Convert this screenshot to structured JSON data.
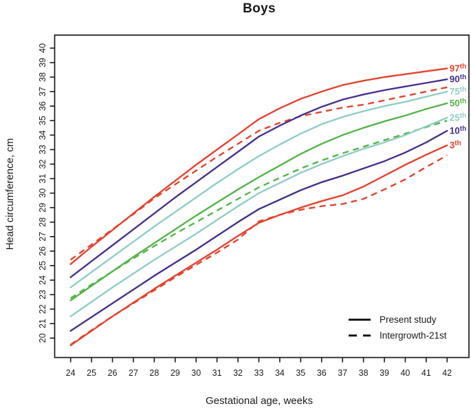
{
  "title": "Boys",
  "axes": {
    "x": {
      "label": "Gestational age, weeks",
      "ticks": [
        24,
        25,
        26,
        27,
        28,
        29,
        30,
        31,
        32,
        33,
        34,
        35,
        36,
        37,
        38,
        39,
        40,
        41,
        42
      ]
    },
    "y": {
      "label": "Head circumference, cm",
      "ticks": [
        20,
        21,
        22,
        23,
        24,
        25,
        26,
        27,
        28,
        29,
        30,
        31,
        32,
        33,
        34,
        35,
        36,
        37,
        38,
        39,
        40
      ]
    }
  },
  "legend": {
    "items": [
      {
        "label": "Present study",
        "style": "solid"
      },
      {
        "label": "Intergrowth-21st",
        "style": "dashed"
      }
    ]
  },
  "colors": {
    "red": "#E5422D",
    "purple": "#472F8F",
    "teal": "#8FCDC5",
    "green": "#53B549",
    "axis": "#1A1A1A"
  },
  "chart_data": {
    "type": "line",
    "title": "Boys",
    "xlabel": "Gestational age, weeks",
    "ylabel": "Head circumference, cm",
    "xlim": [
      23.2,
      43.0
    ],
    "ylim": [
      18.7,
      41.0
    ],
    "grid": false,
    "legend_position": "bottom-right-inside",
    "x": [
      24,
      25,
      26,
      27,
      28,
      29,
      30,
      31,
      32,
      33,
      34,
      35,
      36,
      37,
      38,
      39,
      40,
      41,
      42
    ],
    "series": [
      {
        "name": "97th",
        "study": "Present study",
        "color": "#E5422D",
        "dashed": false,
        "end_label": {
          "num": "97",
          "sup": "th"
        },
        "values": [
          25.1,
          26.3,
          27.45,
          28.6,
          29.75,
          30.85,
          31.95,
          33.0,
          34.05,
          35.1,
          35.85,
          36.5,
          37.0,
          37.45,
          37.75,
          38.0,
          38.2,
          38.4,
          38.6
        ]
      },
      {
        "name": "97th",
        "study": "Intergrowth-21st",
        "color": "#E5422D",
        "dashed": true,
        "end_label": null,
        "values": [
          25.4,
          26.45,
          27.5,
          28.55,
          29.65,
          30.6,
          31.55,
          32.5,
          33.4,
          34.3,
          34.85,
          35.3,
          35.6,
          35.9,
          36.1,
          36.4,
          36.7,
          37.0,
          37.3
        ]
      },
      {
        "name": "90th",
        "study": "Present study",
        "color": "#472F8F",
        "dashed": false,
        "end_label": {
          "num": "90",
          "sup": "th"
        },
        "values": [
          24.2,
          25.3,
          26.4,
          27.5,
          28.6,
          29.7,
          30.75,
          31.8,
          32.85,
          33.9,
          34.65,
          35.35,
          35.95,
          36.45,
          36.8,
          37.1,
          37.35,
          37.6,
          37.85
        ]
      },
      {
        "name": "75th",
        "study": "Present study",
        "color": "#8FCDC5",
        "dashed": false,
        "end_label": {
          "num": "75",
          "sup": "th"
        },
        "values": [
          23.5,
          24.55,
          25.6,
          26.65,
          27.7,
          28.7,
          29.7,
          30.7,
          31.65,
          32.55,
          33.35,
          34.1,
          34.75,
          35.25,
          35.65,
          36.0,
          36.3,
          36.65,
          37.0
        ]
      },
      {
        "name": "50th",
        "study": "Present study",
        "color": "#53B549",
        "dashed": false,
        "end_label": {
          "num": "50",
          "sup": "th"
        },
        "values": [
          22.6,
          23.6,
          24.6,
          25.6,
          26.55,
          27.5,
          28.45,
          29.35,
          30.25,
          31.1,
          31.9,
          32.7,
          33.4,
          34.0,
          34.5,
          34.95,
          35.35,
          35.8,
          36.2
        ]
      },
      {
        "name": "50th",
        "study": "Intergrowth-21st",
        "color": "#53B549",
        "dashed": true,
        "end_label": null,
        "values": [
          22.75,
          23.7,
          24.6,
          25.5,
          26.35,
          27.2,
          28.0,
          28.8,
          29.6,
          30.4,
          31.05,
          31.7,
          32.25,
          32.75,
          33.2,
          33.65,
          34.1,
          34.55,
          35.0
        ]
      },
      {
        "name": "25th",
        "study": "Present study",
        "color": "#8FCDC5",
        "dashed": false,
        "end_label": {
          "num": "25",
          "sup": "th"
        },
        "values": [
          21.5,
          22.5,
          23.5,
          24.45,
          25.4,
          26.3,
          27.2,
          28.15,
          29.1,
          30.0,
          30.7,
          31.4,
          32.0,
          32.55,
          33.05,
          33.5,
          34.0,
          34.6,
          35.2
        ]
      },
      {
        "name": "10th",
        "study": "Present study",
        "color": "#472F8F",
        "dashed": false,
        "end_label": {
          "num": "10",
          "sup": "th"
        },
        "values": [
          20.5,
          21.45,
          22.4,
          23.35,
          24.3,
          25.2,
          26.1,
          27.05,
          28.0,
          28.9,
          29.55,
          30.2,
          30.75,
          31.2,
          31.7,
          32.2,
          32.8,
          33.5,
          34.3
        ]
      },
      {
        "name": "3th",
        "study": "Present study",
        "color": "#E5422D",
        "dashed": false,
        "end_label": {
          "num": "3",
          "sup": "th"
        },
        "values": [
          19.5,
          20.5,
          21.5,
          22.45,
          23.4,
          24.3,
          25.2,
          26.1,
          27.05,
          27.95,
          28.5,
          29.0,
          29.45,
          29.85,
          30.45,
          31.2,
          31.95,
          32.65,
          33.3
        ]
      },
      {
        "name": "3th",
        "study": "Intergrowth-21st",
        "color": "#E5422D",
        "dashed": true,
        "end_label": null,
        "values": [
          19.55,
          20.55,
          21.5,
          22.4,
          23.3,
          24.2,
          25.05,
          25.9,
          26.8,
          28.05,
          28.5,
          28.85,
          29.1,
          29.25,
          29.6,
          30.25,
          30.95,
          31.8,
          32.6
        ]
      }
    ]
  }
}
